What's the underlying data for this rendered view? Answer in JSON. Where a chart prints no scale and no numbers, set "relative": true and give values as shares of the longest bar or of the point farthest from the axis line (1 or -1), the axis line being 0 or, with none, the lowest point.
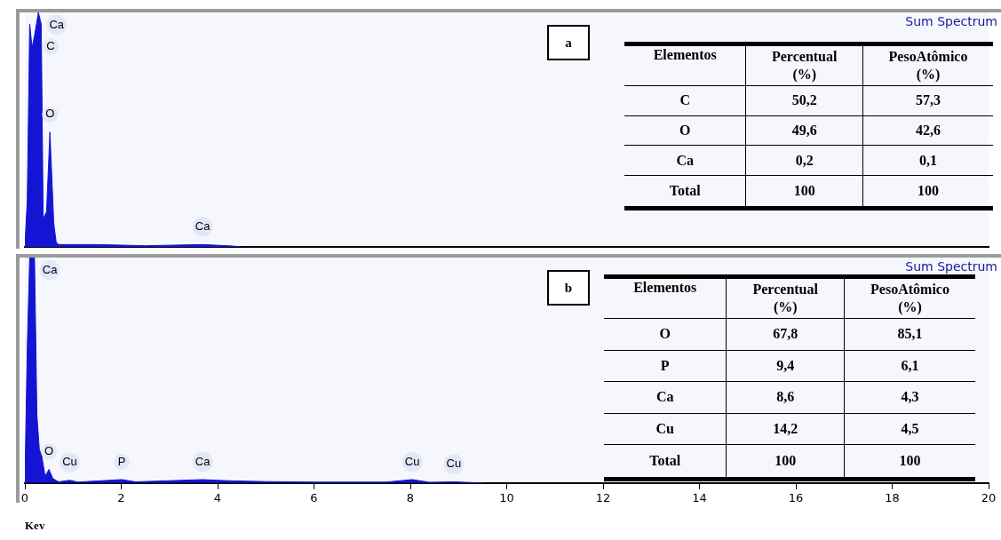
{
  "chart_data": [
    {
      "type": "area",
      "relative": true,
      "xlim": [
        0,
        20
      ],
      "xticks": [
        0,
        2,
        4,
        6,
        8,
        10,
        12,
        14,
        16,
        18,
        20
      ],
      "tick_labels": false,
      "series": [
        {
          "color": "#1414d4",
          "x": [
            0,
            0.05,
            0.1,
            0.15,
            0.2,
            0.28,
            0.34,
            0.38,
            0.45,
            0.52,
            0.6,
            0.65,
            0.7,
            1.5,
            2.5,
            3.69,
            4.3,
            4.5
          ],
          "values": [
            0,
            0.2,
            0.95,
            0.85,
            0.9,
            1,
            0.95,
            0.12,
            0.15,
            0.49,
            0.1,
            0.02,
            0.01,
            0.01,
            0.005,
            0.01,
            0.004,
            0
          ]
        }
      ],
      "annotations": [
        "a",
        "Sum Spectrum",
        {
          "text": "Ca",
          "x": 0.34,
          "y": 0.95
        },
        {
          "text": "C",
          "x": 0.28,
          "y": 1
        },
        {
          "text": "O",
          "x": 0.52,
          "y": 0.49
        },
        {
          "text": "Ca",
          "x": 3.69,
          "y": 0.01
        }
      ]
    },
    {
      "type": "other",
      "ylabel": "Elementos",
      "categories": [
        "Percentual (%)",
        "PesoAtômico (%)"
      ],
      "y_categories": [
        "C",
        "O",
        "Ca",
        "Total"
      ],
      "cell_labels": [
        [
          "50,2",
          "57,3"
        ],
        [
          "49,6",
          "42,6"
        ],
        [
          "0,2",
          "0,1"
        ],
        [
          "100",
          "100"
        ]
      ]
    },
    {
      "type": "area",
      "relative": true,
      "xlim": [
        0,
        20
      ],
      "xticks": [
        0,
        2,
        4,
        6,
        8,
        10,
        12,
        14,
        16,
        18,
        20
      ],
      "tick_labels": "x",
      "xlabel": "Kev",
      "series": [
        {
          "color": "#1414d4",
          "x": [
            0,
            0.05,
            0.1,
            0.2,
            0.25,
            0.3,
            0.35,
            0.42,
            0.5,
            0.58,
            0.7,
            0.93,
            1.1,
            2.01,
            2.3,
            3.69,
            4.2,
            5,
            6,
            7.5,
            8.04,
            8.4,
            8.9,
            9.5
          ],
          "values": [
            0,
            0.6,
            1,
            1,
            0.3,
            0.15,
            0.12,
            0.03,
            0.06,
            0.02,
            0.005,
            0.012,
            0.004,
            0.015,
            0.005,
            0.015,
            0.01,
            0.006,
            0.004,
            0.004,
            0.015,
            0.003,
            0.005,
            0
          ]
        }
      ],
      "annotations": [
        "b",
        "Sum Spectrum",
        {
          "text": "Ca",
          "x": 0.2,
          "y": 1
        },
        {
          "text": "O",
          "x": 0.5,
          "y": 0.06
        },
        {
          "text": "Cu",
          "x": 0.93,
          "y": 0.012
        },
        {
          "text": "P",
          "x": 2.01,
          "y": 0.015
        },
        {
          "text": "Ca",
          "x": 3.69,
          "y": 0.015
        },
        {
          "text": "Cu",
          "x": 8.04,
          "y": 0.015
        },
        {
          "text": "Cu",
          "x": 8.9,
          "y": 0.005
        }
      ]
    },
    {
      "type": "other",
      "ylabel": "Elementos",
      "categories": [
        "Percentual (%)",
        "PesoAtômico (%)"
      ],
      "y_categories": [
        "O",
        "P",
        "Ca",
        "Cu",
        "Total"
      ],
      "cell_labels": [
        [
          "67,8",
          "85,1"
        ],
        [
          "9,4",
          "6,1"
        ],
        [
          "8,6",
          "4,3"
        ],
        [
          "14,2",
          "4,5"
        ],
        [
          "100",
          "100"
        ]
      ]
    }
  ]
}
